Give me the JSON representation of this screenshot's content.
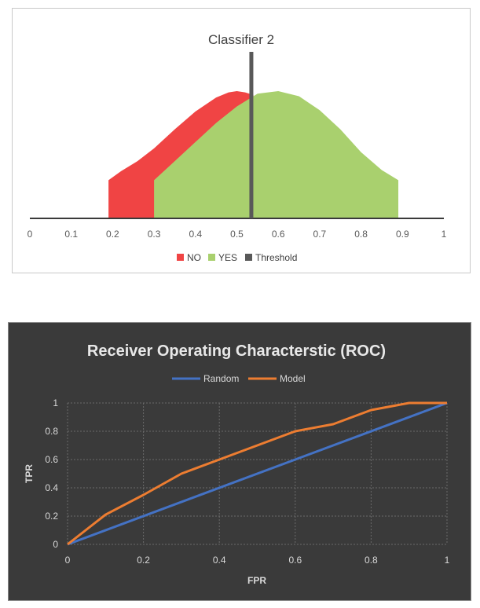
{
  "chart_data": [
    {
      "type": "area",
      "title": "Classifier 2",
      "x_ticks": [
        "0",
        "0.1",
        "0.2",
        "0.3",
        "0.4",
        "0.5",
        "0.6",
        "0.7",
        "0.8",
        "0.9",
        "1"
      ],
      "xlim": [
        0,
        1
      ],
      "series": [
        {
          "name": "NO",
          "color": "#f04444",
          "x": [
            0.19,
            0.22,
            0.26,
            0.3,
            0.35,
            0.4,
            0.45,
            0.48,
            0.5,
            0.52,
            0.54
          ],
          "y": [
            0.3,
            0.37,
            0.45,
            0.55,
            0.7,
            0.84,
            0.95,
            0.99,
            1.0,
            0.99,
            0.97
          ]
        },
        {
          "name": "YES",
          "color": "#a9d06e",
          "x": [
            0.3,
            0.35,
            0.4,
            0.45,
            0.5,
            0.55,
            0.6,
            0.65,
            0.7,
            0.75,
            0.8,
            0.85,
            0.89
          ],
          "y": [
            0.3,
            0.45,
            0.6,
            0.75,
            0.88,
            0.98,
            1.0,
            0.96,
            0.85,
            0.7,
            0.52,
            0.38,
            0.3
          ]
        }
      ],
      "threshold": {
        "name": "Threshold",
        "x": 0.535,
        "color": "#595959"
      },
      "legend_position": "bottom"
    },
    {
      "type": "line",
      "title": "Receiver Operating Characterstic (ROC)",
      "xlabel": "FPR",
      "ylabel": "TPR",
      "xlim": [
        0,
        1
      ],
      "ylim": [
        0,
        1
      ],
      "x_ticks": [
        "0",
        "0.2",
        "0.4",
        "0.6",
        "0.8",
        "1"
      ],
      "y_ticks": [
        "0",
        "0.2",
        "0.4",
        "0.6",
        "0.8",
        "1"
      ],
      "grid": true,
      "legend_position": "top",
      "series": [
        {
          "name": "Random",
          "color": "#4472c4",
          "x": [
            0,
            1
          ],
          "y": [
            0,
            1
          ]
        },
        {
          "name": "Model",
          "color": "#ed7d31",
          "x": [
            0,
            0.1,
            0.2,
            0.3,
            0.4,
            0.5,
            0.6,
            0.7,
            0.8,
            0.9,
            1.0
          ],
          "y": [
            0,
            0.21,
            0.35,
            0.5,
            0.6,
            0.7,
            0.8,
            0.85,
            0.95,
            1.0,
            1.0
          ]
        }
      ]
    }
  ]
}
